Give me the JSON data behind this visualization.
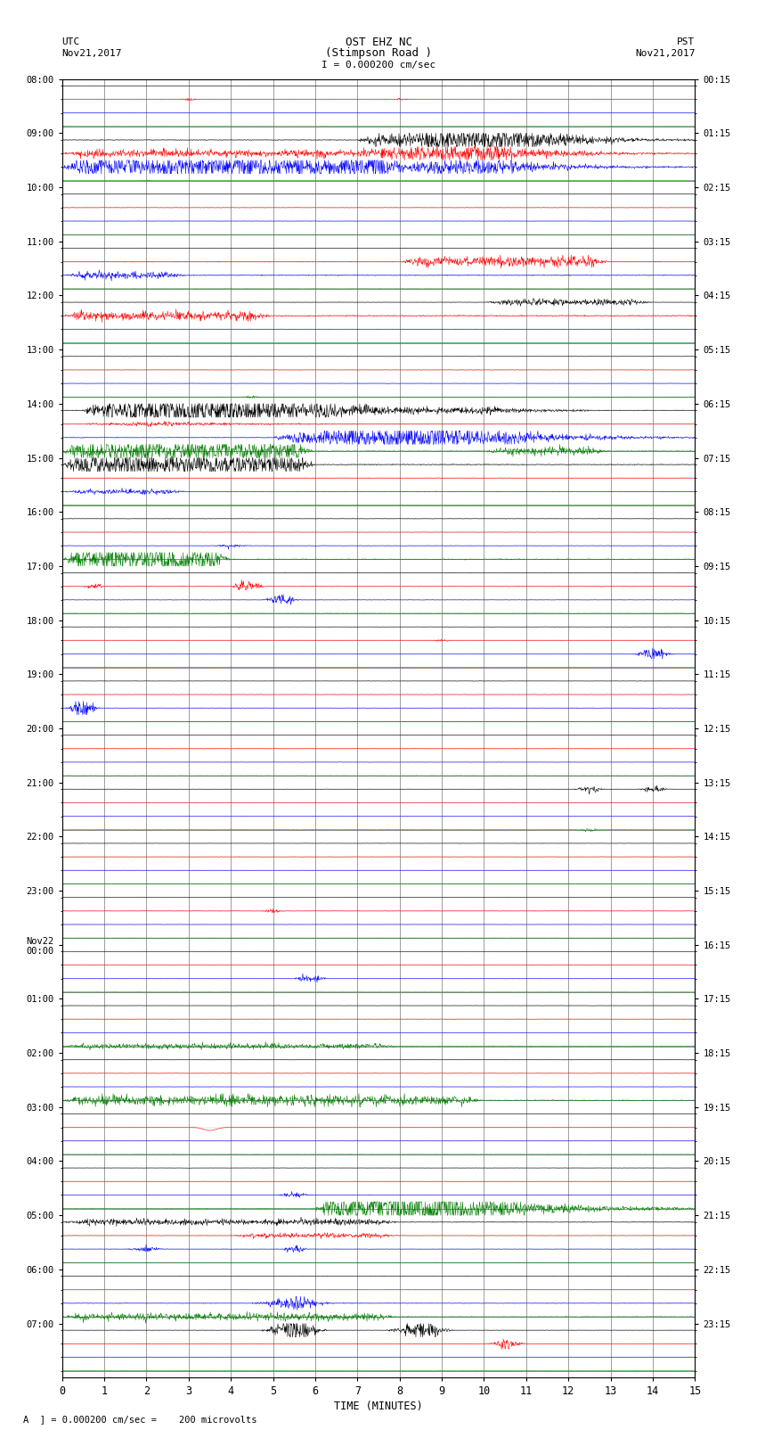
{
  "title_line1": "OST EHZ NC",
  "title_line2": "(Stimpson Road )",
  "scale_text": "I = 0.000200 cm/sec",
  "left_header_line1": "UTC",
  "left_header_line2": "Nov21,2017",
  "right_header_line1": "PST",
  "right_header_line2": "Nov21,2017",
  "footer_text": "A  ] = 0.000200 cm/sec =    200 microvolts",
  "xlabel": "TIME (MINUTES)",
  "xlim": [
    0,
    15
  ],
  "xticks": [
    0,
    1,
    2,
    3,
    4,
    5,
    6,
    7,
    8,
    9,
    10,
    11,
    12,
    13,
    14,
    15
  ],
  "bg_color": "#ffffff",
  "utc_times_major": [
    "08:00",
    "09:00",
    "10:00",
    "11:00",
    "12:00",
    "13:00",
    "14:00",
    "15:00",
    "16:00",
    "17:00",
    "18:00",
    "19:00",
    "20:00",
    "21:00",
    "22:00",
    "23:00",
    "Nov22\n00:00",
    "01:00",
    "02:00",
    "03:00",
    "04:00",
    "05:00",
    "06:00",
    "07:00"
  ],
  "pst_times_major": [
    "00:15",
    "01:15",
    "02:15",
    "03:15",
    "04:15",
    "05:15",
    "06:15",
    "07:15",
    "08:15",
    "09:15",
    "10:15",
    "11:15",
    "12:15",
    "13:15",
    "14:15",
    "15:15",
    "16:15",
    "17:15",
    "18:15",
    "19:15",
    "20:15",
    "21:15",
    "22:15",
    "23:15"
  ],
  "n_hours": 24,
  "traces_per_hour": 4,
  "trace_colors": [
    "black",
    "red",
    "blue",
    "green"
  ],
  "figsize": [
    8.5,
    16.13
  ],
  "dpi": 100
}
